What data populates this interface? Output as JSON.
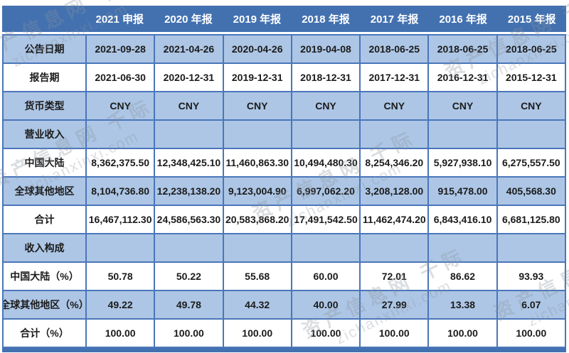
{
  "table": {
    "column_headers": [
      "2021 申报",
      "2020 年报",
      "2019 年报",
      "2018 年报",
      "2017 年报",
      "2016 年报",
      "2015 年报"
    ],
    "rows": [
      {
        "label": "公告日期",
        "shade": true,
        "section": false,
        "values": [
          "2021-09-28",
          "2021-04-26",
          "2020-04-26",
          "2019-04-08",
          "2018-06-25",
          "2018-06-25",
          "2018-06-25"
        ]
      },
      {
        "label": "报告期",
        "shade": false,
        "section": false,
        "values": [
          "2021-06-30",
          "2020-12-31",
          "2019-12-31",
          "2018-12-31",
          "2017-12-31",
          "2016-12-31",
          "2015-12-31"
        ]
      },
      {
        "label": "货币类型",
        "shade": true,
        "section": false,
        "values": [
          "CNY",
          "CNY",
          "CNY",
          "CNY",
          "CNY",
          "CNY",
          "CNY"
        ]
      },
      {
        "label": "营业收入",
        "shade": true,
        "section": true,
        "values": [
          "",
          "",
          "",
          "",
          "",
          "",
          ""
        ]
      },
      {
        "label": "中国大陆",
        "shade": false,
        "section": false,
        "values": [
          "8,362,375.50",
          "12,348,425.10",
          "11,460,863.30",
          "10,494,480.30",
          "8,254,346.20",
          "5,927,938.10",
          "6,275,557.50"
        ]
      },
      {
        "label": "全球其他地区",
        "shade": true,
        "section": false,
        "values": [
          "8,104,736.80",
          "12,238,138.20",
          "9,123,004.90",
          "6,997,062.20",
          "3,208,128.00",
          "915,478.00",
          "405,568.30"
        ]
      },
      {
        "label": "合计",
        "shade": false,
        "section": false,
        "values": [
          "16,467,112.30",
          "24,586,563.30",
          "20,583,868.20",
          "17,491,542.50",
          "11,462,474.20",
          "6,843,416.10",
          "6,681,125.80"
        ]
      },
      {
        "label": "收入构成",
        "shade": true,
        "section": true,
        "values": [
          "",
          "",
          "",
          "",
          "",
          "",
          ""
        ]
      },
      {
        "label": "中国大陆（%）",
        "shade": false,
        "section": false,
        "values": [
          "50.78",
          "50.22",
          "55.68",
          "60.00",
          "72.01",
          "86.62",
          "93.93"
        ]
      },
      {
        "label": "全球其他地区（%）",
        "shade": true,
        "section": false,
        "values": [
          "49.22",
          "49.78",
          "44.32",
          "40.00",
          "27.99",
          "13.38",
          "6.07"
        ]
      },
      {
        "label": "合计（%）",
        "shade": false,
        "section": false,
        "values": [
          "100.00",
          "100.00",
          "100.00",
          "100.00",
          "100.00",
          "100.00",
          "100.00"
        ]
      }
    ]
  },
  "watermark": {
    "line1": "资产信息网 千际",
    "line2": "zichanxinxi.com"
  },
  "colors": {
    "header_bg": "#4371b0",
    "header_text": "#ffffff",
    "row_shade_bg": "#adc6e5",
    "row_white_bg": "#ffffff",
    "border": "#4a76ba",
    "body_text": "#1b1b1b",
    "watermark": "#8a939e"
  },
  "chart_data": {
    "type": "table",
    "title": "营业收入构成（按地区）",
    "columns": [
      "",
      "2021 申报",
      "2020 年报",
      "2019 年报",
      "2018 年报",
      "2017 年报",
      "2016 年报",
      "2015 年报"
    ],
    "rows": [
      [
        "公告日期",
        "2021-09-28",
        "2021-04-26",
        "2020-04-26",
        "2019-04-08",
        "2018-06-25",
        "2018-06-25",
        "2018-06-25"
      ],
      [
        "报告期",
        "2021-06-30",
        "2020-12-31",
        "2019-12-31",
        "2018-12-31",
        "2017-12-31",
        "2016-12-31",
        "2015-12-31"
      ],
      [
        "货币类型",
        "CNY",
        "CNY",
        "CNY",
        "CNY",
        "CNY",
        "CNY",
        "CNY"
      ],
      [
        "营业收入",
        "",
        "",
        "",
        "",
        "",
        "",
        ""
      ],
      [
        "中国大陆",
        8362375.5,
        12348425.1,
        11460863.3,
        10494480.3,
        8254346.2,
        5927938.1,
        6275557.5
      ],
      [
        "全球其他地区",
        8104736.8,
        12238138.2,
        9123004.9,
        6997062.2,
        3208128.0,
        915478.0,
        405568.3
      ],
      [
        "合计",
        16467112.3,
        24586563.3,
        20583868.2,
        17491542.5,
        11462474.2,
        6843416.1,
        6681125.8
      ],
      [
        "收入构成",
        "",
        "",
        "",
        "",
        "",
        "",
        ""
      ],
      [
        "中国大陆（%）",
        50.78,
        50.22,
        55.68,
        60.0,
        72.01,
        86.62,
        93.93
      ],
      [
        "全球其他地区（%）",
        49.22,
        49.78,
        44.32,
        40.0,
        27.99,
        13.38,
        6.07
      ],
      [
        "合计（%）",
        100.0,
        100.0,
        100.0,
        100.0,
        100.0,
        100.0,
        100.0
      ]
    ]
  }
}
